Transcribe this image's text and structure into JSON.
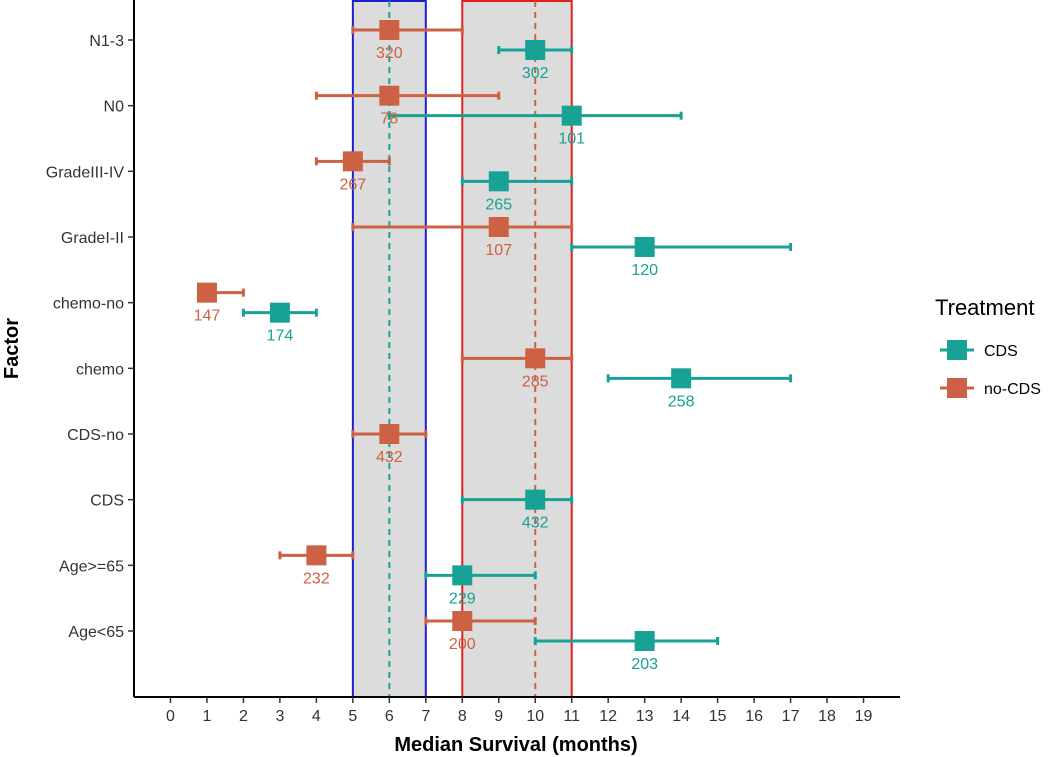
{
  "chart_data": {
    "type": "forest",
    "xlabel": "Median Survival (months)",
    "ylabel": "Factor",
    "xlim": [
      -1,
      20
    ],
    "x_ticks": [
      0,
      1,
      2,
      3,
      4,
      5,
      6,
      7,
      8,
      9,
      10,
      11,
      12,
      13,
      14,
      15,
      16,
      17,
      18,
      19
    ],
    "factors": [
      "Age<65",
      "Age>=65",
      "CDS",
      "CDS-no",
      "chemo",
      "chemo-no",
      "GradeI-II",
      "GradeIII-IV",
      "N0",
      "N1-3"
    ],
    "legend": {
      "title": "Treatment",
      "position": "right",
      "entries": [
        {
          "label": "CDS",
          "color": "#17A295"
        },
        {
          "label": "no-CDS",
          "color": "#CC6144"
        }
      ]
    },
    "colors": {
      "CDS": "#17A295",
      "no-CDS": "#CC6144",
      "blue_box": "#1F1FD0",
      "red_box": "#E0201E",
      "band_fill": "#DCDCDC"
    },
    "reference_lines": [
      {
        "x": 6,
        "series": "CDS",
        "style": "dashed"
      },
      {
        "x": 10,
        "series": "no-CDS",
        "style": "dashed"
      }
    ],
    "shaded_boxes": [
      {
        "x_range": [
          5,
          7
        ],
        "border": "blue"
      },
      {
        "x_range": [
          8,
          11
        ],
        "border": "red"
      }
    ],
    "series": [
      {
        "name": "CDS",
        "points": [
          {
            "factor": "N1-3",
            "median": 10,
            "lower": 9,
            "upper": 11,
            "n": "302"
          },
          {
            "factor": "N0",
            "median": 11,
            "lower": 6,
            "upper": 14,
            "n": "101"
          },
          {
            "factor": "GradeIII-IV",
            "median": 9,
            "lower": 8,
            "upper": 11,
            "n": "265"
          },
          {
            "factor": "GradeI-II",
            "median": 13,
            "lower": 11,
            "upper": 17,
            "n": "120"
          },
          {
            "factor": "chemo-no",
            "median": 3,
            "lower": 2,
            "upper": 4,
            "n": "174"
          },
          {
            "factor": "chemo",
            "median": 14,
            "lower": 12,
            "upper": 17,
            "n": "258"
          },
          {
            "factor": "CDS",
            "median": 10,
            "lower": 8,
            "upper": 11,
            "n": "432"
          },
          {
            "factor": "Age>=65",
            "median": 8,
            "lower": 7,
            "upper": 10,
            "n": "229"
          },
          {
            "factor": "Age<65",
            "median": 13,
            "lower": 10,
            "upper": 15,
            "n": "203"
          }
        ]
      },
      {
        "name": "no-CDS",
        "points": [
          {
            "factor": "N1-3",
            "median": 6,
            "lower": 5,
            "upper": 8,
            "n": "320"
          },
          {
            "factor": "N0",
            "median": 6,
            "lower": 4,
            "upper": 9,
            "n": "78"
          },
          {
            "factor": "GradeIII-IV",
            "median": 5,
            "lower": 4,
            "upper": 6,
            "n": "267"
          },
          {
            "factor": "GradeI-II",
            "median": 9,
            "lower": 5,
            "upper": 11,
            "n": "107"
          },
          {
            "factor": "chemo-no",
            "median": 1,
            "lower": 1,
            "upper": 2,
            "n": "147"
          },
          {
            "factor": "chemo",
            "median": 10,
            "lower": 8,
            "upper": 11,
            "n": "285"
          },
          {
            "factor": "CDS-no",
            "median": 6,
            "lower": 5,
            "upper": 7,
            "n": "432"
          },
          {
            "factor": "Age>=65",
            "median": 4,
            "lower": 3,
            "upper": 5,
            "n": "232"
          },
          {
            "factor": "Age<65",
            "median": 8,
            "lower": 7,
            "upper": 10,
            "n": "200"
          }
        ]
      }
    ]
  }
}
